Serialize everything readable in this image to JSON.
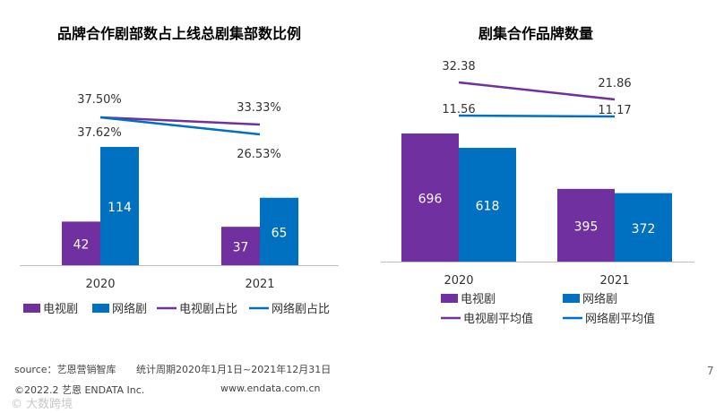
{
  "colors": {
    "tv": "#7030a0",
    "web": "#0070c0",
    "axis": "#bfbfbf",
    "title": "#000000"
  },
  "chart_data": [
    {
      "type": "bar",
      "title": "品牌合作剧部数占上线总剧集部数比例",
      "categories": [
        "2020",
        "2021"
      ],
      "series": [
        {
          "name": "电视剧",
          "kind": "bar",
          "values": [
            42,
            37
          ],
          "labels": [
            "42",
            "37"
          ]
        },
        {
          "name": "网络剧",
          "kind": "bar",
          "values": [
            114,
            65
          ],
          "labels": [
            "114",
            "65"
          ]
        },
        {
          "name": "电视剧占比",
          "kind": "line",
          "values": [
            37.5,
            33.33
          ],
          "labels": [
            "37.50%",
            "33.33%"
          ]
        },
        {
          "name": "网络剧占比",
          "kind": "line",
          "values": [
            37.62,
            26.53
          ],
          "labels": [
            "37.62%",
            "26.53%"
          ]
        }
      ],
      "legend": [
        "电视剧",
        "网络剧",
        "电视剧占比",
        "网络剧占比"
      ],
      "legend_position": "bottom",
      "grid": false
    },
    {
      "type": "bar",
      "title": "剧集合作品牌数量",
      "categories": [
        "2020",
        "2021"
      ],
      "series": [
        {
          "name": "电视剧",
          "kind": "bar",
          "values": [
            696,
            395
          ],
          "labels": [
            "696",
            "395"
          ]
        },
        {
          "name": "网络剧",
          "kind": "bar",
          "values": [
            618,
            372
          ],
          "labels": [
            "618",
            "372"
          ]
        },
        {
          "name": "电视剧平均值",
          "kind": "line",
          "values": [
            32.38,
            21.86
          ],
          "labels": [
            "32.38",
            "21.86"
          ]
        },
        {
          "name": "网络剧平均值",
          "kind": "line",
          "values": [
            11.56,
            11.17
          ],
          "labels": [
            "11.56",
            "11.17"
          ]
        }
      ],
      "legend": [
        "电视剧",
        "网络剧",
        "电视剧平均值",
        "网络剧平均值"
      ],
      "legend_position": "bottom",
      "grid": false
    }
  ],
  "footer": {
    "source": "source：艺恩营销智库",
    "period": "统计周期2020年1月1日~2021年12月31日",
    "copyright": "©2022.2 艺恩 ENDATA Inc.",
    "website": "www.endata.com.cn",
    "page_number": "7",
    "watermark": "大数跨境"
  }
}
